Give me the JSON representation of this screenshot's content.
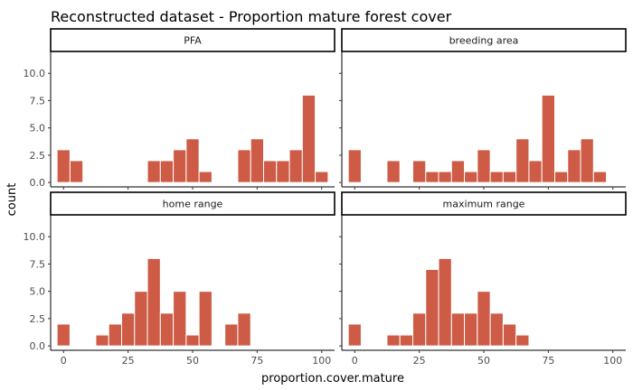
{
  "chart_data": {
    "type": "bar",
    "title": "Reconstructed dataset - Proportion mature forest cover",
    "xlabel": "proportion.cover.mature",
    "ylabel": "count",
    "xlim": [
      -5,
      105
    ],
    "ylim": [
      -0.4,
      12
    ],
    "x_ticks": [
      0,
      25,
      50,
      75,
      100
    ],
    "y_ticks": [
      0.0,
      2.5,
      5.0,
      7.5,
      10.0
    ],
    "y_tick_labels": [
      "0.0",
      "2.5",
      "5.0",
      "7.5",
      "10.0"
    ],
    "bin_width": 5,
    "bar_color": "#CD5B45",
    "bar_outline": "#ffffff",
    "grid": false,
    "facets": [
      {
        "label": "PFA",
        "bins": [
          {
            "x": 0,
            "y": 3
          },
          {
            "x": 5,
            "y": 2
          },
          {
            "x": 35,
            "y": 2
          },
          {
            "x": 40,
            "y": 2
          },
          {
            "x": 45,
            "y": 3
          },
          {
            "x": 50,
            "y": 4
          },
          {
            "x": 55,
            "y": 1
          },
          {
            "x": 70,
            "y": 3
          },
          {
            "x": 75,
            "y": 4
          },
          {
            "x": 80,
            "y": 2
          },
          {
            "x": 85,
            "y": 2
          },
          {
            "x": 90,
            "y": 3
          },
          {
            "x": 95,
            "y": 8
          },
          {
            "x": 100,
            "y": 1
          }
        ]
      },
      {
        "label": "breeding area",
        "bins": [
          {
            "x": 0,
            "y": 3
          },
          {
            "x": 15,
            "y": 2
          },
          {
            "x": 25,
            "y": 2
          },
          {
            "x": 30,
            "y": 1
          },
          {
            "x": 35,
            "y": 1
          },
          {
            "x": 40,
            "y": 2
          },
          {
            "x": 45,
            "y": 1
          },
          {
            "x": 50,
            "y": 3
          },
          {
            "x": 55,
            "y": 1
          },
          {
            "x": 60,
            "y": 1
          },
          {
            "x": 65,
            "y": 4
          },
          {
            "x": 70,
            "y": 2
          },
          {
            "x": 75,
            "y": 8
          },
          {
            "x": 80,
            "y": 1
          },
          {
            "x": 85,
            "y": 3
          },
          {
            "x": 90,
            "y": 4
          },
          {
            "x": 95,
            "y": 1
          }
        ]
      },
      {
        "label": "home range",
        "bins": [
          {
            "x": 0,
            "y": 2
          },
          {
            "x": 15,
            "y": 1
          },
          {
            "x": 20,
            "y": 2
          },
          {
            "x": 25,
            "y": 3
          },
          {
            "x": 30,
            "y": 5
          },
          {
            "x": 35,
            "y": 8
          },
          {
            "x": 40,
            "y": 3
          },
          {
            "x": 45,
            "y": 5
          },
          {
            "x": 50,
            "y": 1
          },
          {
            "x": 55,
            "y": 5
          },
          {
            "x": 65,
            "y": 2
          },
          {
            "x": 70,
            "y": 3
          }
        ]
      },
      {
        "label": "maximum range",
        "bins": [
          {
            "x": 0,
            "y": 2
          },
          {
            "x": 15,
            "y": 1
          },
          {
            "x": 20,
            "y": 1
          },
          {
            "x": 25,
            "y": 3
          },
          {
            "x": 30,
            "y": 7
          },
          {
            "x": 35,
            "y": 8
          },
          {
            "x": 40,
            "y": 3
          },
          {
            "x": 45,
            "y": 3
          },
          {
            "x": 50,
            "y": 5
          },
          {
            "x": 55,
            "y": 3
          },
          {
            "x": 60,
            "y": 2
          },
          {
            "x": 65,
            "y": 1
          }
        ]
      }
    ]
  }
}
